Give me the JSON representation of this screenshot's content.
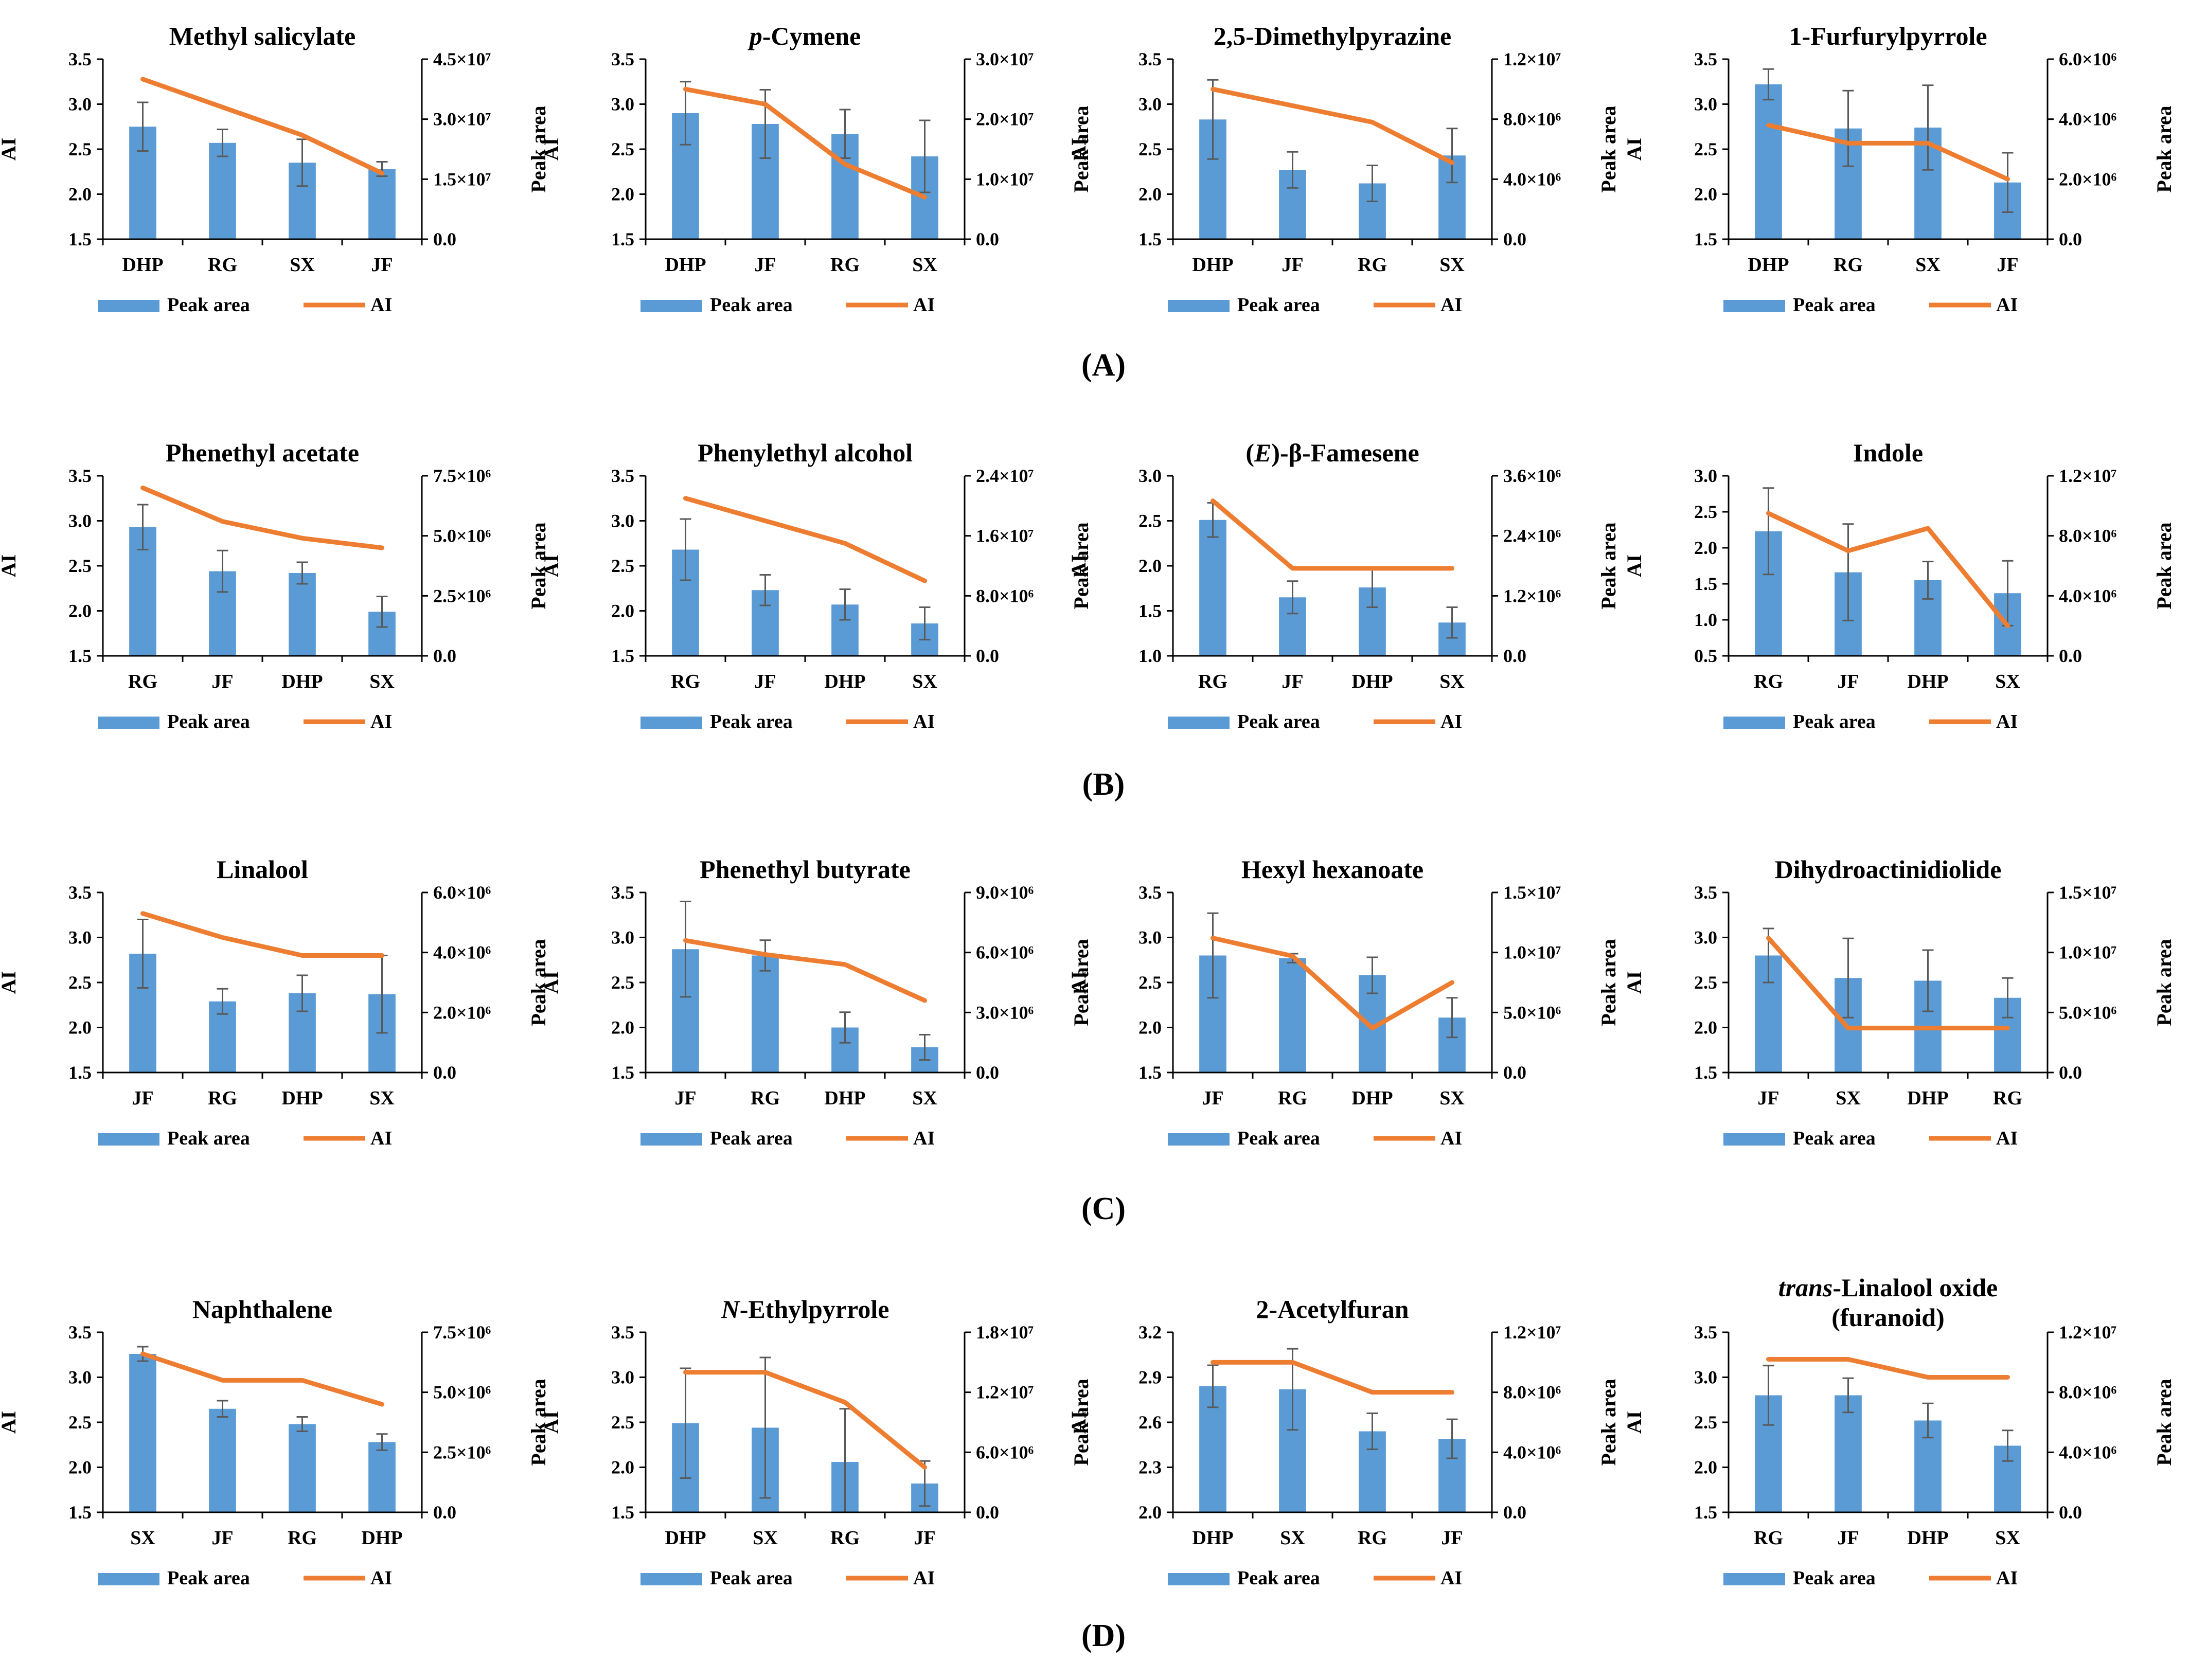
{
  "figure": {
    "panel_labels": [
      "(A)",
      "(B)",
      "(C)",
      "(D)"
    ],
    "colors": {
      "bar": "#5b9bd5",
      "line": "#ed7d31",
      "error": "#595959",
      "axis": "#000000"
    },
    "left_axis_label": "AI",
    "right_axis_label": "Peak area",
    "legend": {
      "bar": "Peak area",
      "line": "AI"
    }
  },
  "chart_data": [
    {
      "type": "bar",
      "title": [
        {
          "t": "Methyl salicylate",
          "i": false
        }
      ],
      "categories": [
        "DHP",
        "RG",
        "SX",
        "JF"
      ],
      "bar_series": {
        "name": "Peak area",
        "values": [
          2.75,
          2.57,
          2.35,
          2.28
        ],
        "errors": [
          0.27,
          0.15,
          0.26,
          0.08
        ]
      },
      "line_series": {
        "name": "AI",
        "values": [
          40000000.0,
          33000000.0,
          26000000.0,
          16500000.0
        ]
      },
      "ylim_left": [
        1.5,
        3.5
      ],
      "left_ticks": [
        "1.5",
        "2.0",
        "2.5",
        "3.0",
        "3.5"
      ],
      "ylim_right": [
        0,
        45000000.0
      ],
      "right_ticks": [
        "0.0",
        "1.5×10⁷",
        "3.0×10⁷",
        "4.5×10⁷"
      ],
      "xlabel": "",
      "ylabel": "AI",
      "ylabel_right": "Peak area"
    },
    {
      "type": "bar",
      "title": [
        {
          "t": "p",
          "i": true
        },
        {
          "t": "-Cymene",
          "i": false
        }
      ],
      "categories": [
        "DHP",
        "JF",
        "RG",
        "SX"
      ],
      "bar_series": {
        "name": "Peak area",
        "values": [
          2.9,
          2.78,
          2.67,
          2.42
        ],
        "errors": [
          0.35,
          0.38,
          0.27,
          0.4
        ]
      },
      "line_series": {
        "name": "AI",
        "values": [
          25000000.0,
          22500000.0,
          12500000.0,
          7000000.0
        ]
      },
      "ylim_left": [
        1.5,
        3.5
      ],
      "left_ticks": [
        "1.5",
        "2.0",
        "2.5",
        "3.0",
        "3.5"
      ],
      "ylim_right": [
        0,
        30000000.0
      ],
      "right_ticks": [
        "0.0",
        "1.0×10⁷",
        "2.0×10⁷",
        "3.0×10⁷"
      ],
      "xlabel": "",
      "ylabel": "AI",
      "ylabel_right": "Peak area"
    },
    {
      "type": "bar",
      "title": [
        {
          "t": "2,5-Dimethylpyrazine",
          "i": false
        }
      ],
      "categories": [
        "DHP",
        "JF",
        "RG",
        "SX"
      ],
      "bar_series": {
        "name": "Peak area",
        "values": [
          2.83,
          2.27,
          2.12,
          2.43
        ],
        "errors": [
          0.44,
          0.2,
          0.2,
          0.3
        ]
      },
      "line_series": {
        "name": "AI",
        "values": [
          10000000.0,
          8900000.0,
          7800000.0,
          5100000.0
        ]
      },
      "ylim_left": [
        1.5,
        3.5
      ],
      "left_ticks": [
        "1.5",
        "2.0",
        "2.5",
        "3.0",
        "3.5"
      ],
      "ylim_right": [
        0,
        12000000.0
      ],
      "right_ticks": [
        "0.0",
        "4.0×10⁶",
        "8.0×10⁶",
        "1.2×10⁷"
      ],
      "xlabel": "",
      "ylabel": "AI",
      "ylabel_right": "Peak area"
    },
    {
      "type": "bar",
      "title": [
        {
          "t": "1-Furfurylpyrrole",
          "i": false
        }
      ],
      "categories": [
        "DHP",
        "RG",
        "SX",
        "JF"
      ],
      "bar_series": {
        "name": "Peak area",
        "values": [
          3.22,
          2.73,
          2.74,
          2.13
        ],
        "errors": [
          0.17,
          0.42,
          0.47,
          0.33
        ]
      },
      "line_series": {
        "name": "AI",
        "values": [
          3800000.0,
          3200000.0,
          3200000.0,
          2000000.0
        ]
      },
      "ylim_left": [
        1.5,
        3.5
      ],
      "left_ticks": [
        "1.5",
        "2.0",
        "2.5",
        "3.0",
        "3.5"
      ],
      "ylim_right": [
        0,
        6000000.0
      ],
      "right_ticks": [
        "0.0",
        "2.0×10⁶",
        "4.0×10⁶",
        "6.0×10⁶"
      ],
      "xlabel": "",
      "ylabel": "AI",
      "ylabel_right": "Peak area"
    },
    {
      "type": "bar",
      "title": [
        {
          "t": "Phenethyl acetate",
          "i": false
        }
      ],
      "categories": [
        "RG",
        "JF",
        "DHP",
        "SX"
      ],
      "bar_series": {
        "name": "Peak area",
        "values": [
          2.93,
          2.44,
          2.42,
          1.99
        ],
        "errors": [
          0.25,
          0.23,
          0.12,
          0.17
        ]
      },
      "line_series": {
        "name": "AI",
        "values": [
          7000000.0,
          5600000.0,
          4900000.0,
          4500000.0
        ]
      },
      "ylim_left": [
        1.5,
        3.5
      ],
      "left_ticks": [
        "1.5",
        "2.0",
        "2.5",
        "3.0",
        "3.5"
      ],
      "ylim_right": [
        0,
        7500000.0
      ],
      "right_ticks": [
        "0.0",
        "2.5×10⁶",
        "5.0×10⁶",
        "7.5×10⁶"
      ],
      "xlabel": "",
      "ylabel": "AI",
      "ylabel_right": "Peak area"
    },
    {
      "type": "bar",
      "title": [
        {
          "t": "Phenylethyl alcohol",
          "i": false
        }
      ],
      "categories": [
        "RG",
        "JF",
        "DHP",
        "SX"
      ],
      "bar_series": {
        "name": "Peak area",
        "values": [
          2.68,
          2.23,
          2.07,
          1.86
        ],
        "errors": [
          0.34,
          0.17,
          0.17,
          0.18
        ]
      },
      "line_series": {
        "name": "AI",
        "values": [
          21000000.0,
          18000000.0,
          15000000.0,
          10000000.0
        ]
      },
      "ylim_left": [
        1.5,
        3.5
      ],
      "left_ticks": [
        "1.5",
        "2.0",
        "2.5",
        "3.0",
        "3.5"
      ],
      "ylim_right": [
        0,
        24000000.0
      ],
      "right_ticks": [
        "0.0",
        "8.0×10⁶",
        "1.6×10⁷",
        "2.4×10⁷"
      ],
      "xlabel": "",
      "ylabel": "AI",
      "ylabel_right": "Peak area"
    },
    {
      "type": "bar",
      "title": [
        {
          "t": "(",
          "i": false
        },
        {
          "t": "E",
          "i": true
        },
        {
          "t": ")-β-Famesene",
          "i": false
        }
      ],
      "categories": [
        "RG",
        "JF",
        "DHP",
        "SX"
      ],
      "bar_series": {
        "name": "Peak area",
        "values": [
          2.51,
          1.65,
          1.76,
          1.37
        ],
        "errors": [
          0.19,
          0.18,
          0.22,
          0.17
        ]
      },
      "line_series": {
        "name": "AI",
        "values": [
          3100000.0,
          1750000.0,
          1750000.0,
          1750000.0
        ]
      },
      "ylim_left": [
        1.0,
        3.0
      ],
      "left_ticks": [
        "1.0",
        "1.5",
        "2.0",
        "2.5",
        "3.0"
      ],
      "ylim_right": [
        0,
        3600000.0
      ],
      "right_ticks": [
        "0.0",
        "1.2×10⁶",
        "2.4×10⁶",
        "3.6×10⁶"
      ],
      "xlabel": "",
      "ylabel": "AI",
      "ylabel_right": "Peak area"
    },
    {
      "type": "bar",
      "title": [
        {
          "t": "Indole",
          "i": false
        }
      ],
      "categories": [
        "RG",
        "JF",
        "DHP",
        "SX"
      ],
      "bar_series": {
        "name": "Peak area",
        "values": [
          2.23,
          1.66,
          1.55,
          1.37
        ],
        "errors": [
          0.6,
          0.67,
          0.26,
          0.45
        ]
      },
      "line_series": {
        "name": "AI",
        "values": [
          9500000.0,
          7000000.0,
          8500000.0,
          2000000.0
        ]
      },
      "ylim_left": [
        0.5,
        3.0
      ],
      "left_ticks": [
        "0.5",
        "1.0",
        "1.5",
        "2.0",
        "2.5",
        "3.0"
      ],
      "ylim_right": [
        0,
        12000000.0
      ],
      "right_ticks": [
        "0.0",
        "4.0×10⁶",
        "8.0×10⁶",
        "1.2×10⁷"
      ],
      "xlabel": "",
      "ylabel": "AI",
      "ylabel_right": "Peak area"
    },
    {
      "type": "bar",
      "title": [
        {
          "t": "Linalool",
          "i": false
        }
      ],
      "categories": [
        "JF",
        "RG",
        "DHP",
        "SX"
      ],
      "bar_series": {
        "name": "Peak area",
        "values": [
          2.82,
          2.29,
          2.38,
          2.37
        ],
        "errors": [
          0.38,
          0.14,
          0.2,
          0.43
        ]
      },
      "line_series": {
        "name": "AI",
        "values": [
          5300000.0,
          4500000.0,
          3900000.0,
          3900000.0
        ]
      },
      "ylim_left": [
        1.5,
        3.5
      ],
      "left_ticks": [
        "1.5",
        "2.0",
        "2.5",
        "3.0",
        "3.5"
      ],
      "ylim_right": [
        0,
        6000000.0
      ],
      "right_ticks": [
        "0.0",
        "2.0×10⁶",
        "4.0×10⁶",
        "6.0×10⁶"
      ],
      "xlabel": "",
      "ylabel": "AI",
      "ylabel_right": "Peak area"
    },
    {
      "type": "bar",
      "title": [
        {
          "t": "Phenethyl butyrate",
          "i": false
        }
      ],
      "categories": [
        "JF",
        "RG",
        "DHP",
        "SX"
      ],
      "bar_series": {
        "name": "Peak area",
        "values": [
          2.87,
          2.8,
          2.0,
          1.78
        ],
        "errors": [
          0.53,
          0.17,
          0.17,
          0.14
        ]
      },
      "line_series": {
        "name": "AI",
        "values": [
          6600000.0,
          5900000.0,
          5400000.0,
          3600000.0
        ]
      },
      "ylim_left": [
        1.5,
        3.5
      ],
      "left_ticks": [
        "1.5",
        "2.0",
        "2.5",
        "3.0",
        "3.5"
      ],
      "ylim_right": [
        0,
        9000000.0
      ],
      "right_ticks": [
        "0.0",
        "3.0×10⁶",
        "6.0×10⁶",
        "9.0×10⁶"
      ],
      "xlabel": "",
      "ylabel": "AI",
      "ylabel_right": "Peak area"
    },
    {
      "type": "bar",
      "title": [
        {
          "t": "Hexyl hexanoate",
          "i": false
        }
      ],
      "categories": [
        "JF",
        "RG",
        "DHP",
        "SX"
      ],
      "bar_series": {
        "name": "Peak area",
        "values": [
          2.8,
          2.77,
          2.58,
          2.11
        ],
        "errors": [
          0.47,
          0.05,
          0.2,
          0.22
        ]
      },
      "line_series": {
        "name": "AI",
        "values": [
          11200000.0,
          9700000.0,
          3700000.0,
          7500000.0
        ]
      },
      "ylim_left": [
        1.5,
        3.5
      ],
      "left_ticks": [
        "1.5",
        "2.0",
        "2.5",
        "3.0",
        "3.5"
      ],
      "ylim_right": [
        0,
        15000000.0
      ],
      "right_ticks": [
        "0.0",
        "5.0×10⁶",
        "1.0×10⁷",
        "1.5×10⁷"
      ],
      "xlabel": "",
      "ylabel": "AI",
      "ylabel_right": "Peak area"
    },
    {
      "type": "bar",
      "title": [
        {
          "t": "Dihydroactinidiolide",
          "i": false
        }
      ],
      "categories": [
        "JF",
        "SX",
        "DHP",
        "RG"
      ],
      "bar_series": {
        "name": "Peak area",
        "values": [
          2.8,
          2.55,
          2.52,
          2.33
        ],
        "errors": [
          0.3,
          0.44,
          0.34,
          0.22
        ]
      },
      "line_series": {
        "name": "AI",
        "values": [
          11200000.0,
          3700000.0,
          3700000.0,
          3700000.0
        ]
      },
      "ylim_left": [
        1.5,
        3.5
      ],
      "left_ticks": [
        "1.5",
        "2.0",
        "2.5",
        "3.0",
        "3.5"
      ],
      "ylim_right": [
        0,
        15000000.0
      ],
      "right_ticks": [
        "0.0",
        "5.0×10⁶",
        "1.0×10⁷",
        "1.5×10⁷"
      ],
      "xlabel": "",
      "ylabel": "AI",
      "ylabel_right": "Peak area"
    },
    {
      "type": "bar",
      "title": [
        {
          "t": "Naphthalene",
          "i": false
        }
      ],
      "categories": [
        "SX",
        "JF",
        "RG",
        "DHP"
      ],
      "bar_series": {
        "name": "Peak area",
        "values": [
          3.26,
          2.65,
          2.48,
          2.28
        ],
        "errors": [
          0.08,
          0.09,
          0.08,
          0.09
        ]
      },
      "line_series": {
        "name": "AI",
        "values": [
          6600000.0,
          5500000.0,
          5500000.0,
          4500000.0
        ]
      },
      "ylim_left": [
        1.5,
        3.5
      ],
      "left_ticks": [
        "1.5",
        "2.0",
        "2.5",
        "3.0",
        "3.5"
      ],
      "ylim_right": [
        0,
        7500000.0
      ],
      "right_ticks": [
        "0.0",
        "2.5×10⁶",
        "5.0×10⁶",
        "7.5×10⁶"
      ],
      "xlabel": "",
      "ylabel": "AI",
      "ylabel_right": "Peak area"
    },
    {
      "type": "bar",
      "title": [
        {
          "t": "N",
          "i": true
        },
        {
          "t": "-Ethylpyrrole",
          "i": false
        }
      ],
      "categories": [
        "DHP",
        "SX",
        "RG",
        "JF"
      ],
      "bar_series": {
        "name": "Peak area",
        "values": [
          2.49,
          2.44,
          2.06,
          1.82
        ],
        "errors": [
          0.61,
          0.78,
          0.59,
          0.25
        ]
      },
      "line_series": {
        "name": "AI",
        "values": [
          14000000.0,
          14000000.0,
          11000000.0,
          4500000.0
        ]
      },
      "ylim_left": [
        1.5,
        3.5
      ],
      "left_ticks": [
        "1.5",
        "2.0",
        "2.5",
        "3.0",
        "3.5"
      ],
      "ylim_right": [
        0,
        18000000.0
      ],
      "right_ticks": [
        "0.0",
        "6.0×10⁶",
        "1.2×10⁷",
        "1.8×10⁷"
      ],
      "xlabel": "",
      "ylabel": "AI",
      "ylabel_right": "Peak area"
    },
    {
      "type": "bar",
      "title": [
        {
          "t": "2-Acetylfuran",
          "i": false
        }
      ],
      "categories": [
        "DHP",
        "SX",
        "RG",
        "JF"
      ],
      "bar_series": {
        "name": "Peak area",
        "values": [
          2.84,
          2.82,
          2.54,
          2.49
        ],
        "errors": [
          0.14,
          0.27,
          0.12,
          0.13
        ]
      },
      "line_series": {
        "name": "AI",
        "values": [
          10000000.0,
          10000000.0,
          8000000.0,
          8000000.0
        ]
      },
      "ylim_left": [
        2.0,
        3.2
      ],
      "left_ticks": [
        "2.0",
        "2.3",
        "2.6",
        "2.9",
        "3.2"
      ],
      "ylim_right": [
        0,
        12000000.0
      ],
      "right_ticks": [
        "0.0",
        "4.0×10⁶",
        "8.0×10⁶",
        "1.2×10⁷"
      ],
      "xlabel": "",
      "ylabel": "AI",
      "ylabel_right": "Peak area"
    },
    {
      "type": "bar",
      "title": [
        {
          "t": "trans",
          "i": true
        },
        {
          "t": "-Linalool oxide",
          "i": false
        }
      ],
      "title2": "(furanoid)",
      "categories": [
        "RG",
        "JF",
        "DHP",
        "SX"
      ],
      "bar_series": {
        "name": "Peak area",
        "values": [
          2.8,
          2.8,
          2.52,
          2.24
        ],
        "errors": [
          0.33,
          0.19,
          0.19,
          0.17
        ]
      },
      "line_series": {
        "name": "AI",
        "values": [
          10200000.0,
          10200000.0,
          9000000.0,
          9000000.0
        ]
      },
      "ylim_left": [
        1.5,
        3.5
      ],
      "left_ticks": [
        "1.5",
        "2.0",
        "2.5",
        "3.0",
        "3.5"
      ],
      "ylim_right": [
        0,
        12000000.0
      ],
      "right_ticks": [
        "0.0",
        "4.0×10⁶",
        "8.0×10⁶",
        "1.2×10⁷"
      ],
      "xlabel": "",
      "ylabel": "AI",
      "ylabel_right": "Peak area"
    }
  ]
}
